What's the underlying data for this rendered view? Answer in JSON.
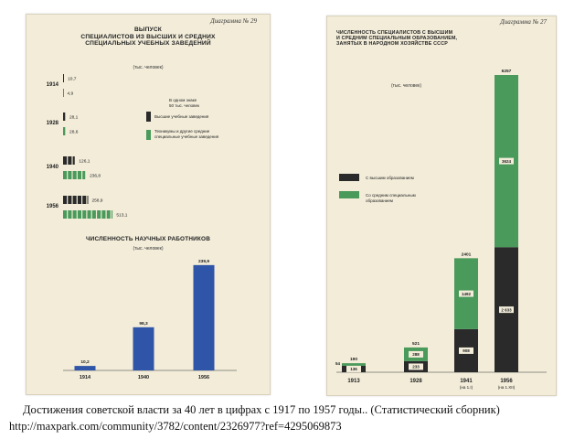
{
  "caption": {
    "line1": "Достижения советской власти за 40 лет в цифрах с 1917 по 1957 годы.. (Статистический сборник)",
    "line2": "http://maxpark.com/community/3782/content/2326977?ref=4295069873"
  },
  "colors": {
    "dark": "#2a2a2a",
    "green": "#4a9a5b",
    "blue": "#2f55a8",
    "paper": "#f2ecd9"
  },
  "left_page": {
    "diagram_number": "Диаграмма № 29",
    "title": "ВЫПУСК\nСПЕЦИАЛИСТОВ ИЗ ВЫСШИХ И СРЕДНИХ\nСПЕЦИАЛЬНЫХ УЧЕБНЫХ ЗАВЕДЕНИЙ",
    "unit": "(тыс. человек)",
    "scale_note": "В одном знаке\n50 тыс. человек",
    "legend_dark": "Высшие учебные заведения",
    "legend_green": "Техникумы и другие средние\nспециальные учебные заведения",
    "section2_title": "ЧИСЛЕННОСТЬ НАУЧНЫХ РАБОТНИКОВ",
    "section2_unit": "(тыс. человек)"
  },
  "right_page": {
    "diagram_number": "Диаграмма № 27",
    "title": "ЧИСЛЕННОСТЬ СПЕЦИАЛИСТОВ С ВЫСШИМ\nИ СРЕДНИМ СПЕЦИАЛЬНЫМ ОБРАЗОВАНИЕМ,\nЗАНЯТЫХ В НАРОДНОМ ХОЗЯЙСТВЕ СССР",
    "unit": "(тыс. человек)",
    "legend_dark": "С высшим образованием",
    "legend_green": "Со средним специальным\nобразованием"
  },
  "chart_data": [
    {
      "type": "bar",
      "orientation": "horizontal",
      "title": "ВЫПУСК СПЕЦИАЛИСТОВ ИЗ ВЫСШИХ И СРЕДНИХ СПЕЦИАЛЬНЫХ УЧЕБНЫХ ЗАВЕДЕНИЙ",
      "categories": [
        "1914",
        "1928",
        "1940",
        "1956"
      ],
      "series": [
        {
          "name": "Высшие учебные заведения",
          "values": [
            10.7,
            28.1,
            126.1,
            258.9
          ],
          "labels": [
            "10,7",
            "28,1",
            "126,1",
            "258,9"
          ]
        },
        {
          "name": "Техникумы и другие средние специальные учебные заведения",
          "values": [
            4.9,
            28.6,
            236.8,
            513.1
          ],
          "labels": [
            "4,9",
            "28,6",
            "236,8",
            "513,1"
          ]
        }
      ]
    },
    {
      "type": "bar",
      "title": "ЧИСЛЕННОСТЬ НАУЧНЫХ РАБОТНИКОВ",
      "categories": [
        "1914",
        "1940",
        "1956"
      ],
      "values": [
        10.2,
        98.3,
        239.9
      ],
      "labels": [
        "10,2",
        "98,3",
        "239,9"
      ]
    },
    {
      "type": "bar",
      "stacked": true,
      "title": "ЧИСЛЕННОСТЬ СПЕЦИАЛИСТОВ С ВЫСШИМ И СРЕДНИМ СПЕЦИАЛЬНЫМ ОБРАЗОВАНИЕМ, ЗАНЯТЫХ В НАРОДНОМ ХОЗЯЙСТВЕ СССР",
      "categories": [
        "1913",
        "1928",
        "1941",
        "1956"
      ],
      "category_notes": [
        "",
        "",
        "(на 1.I)",
        "(на 1.XII)"
      ],
      "totals": [
        190,
        521,
        2401,
        6257
      ],
      "total_labels": [
        "190",
        "521",
        "2401",
        "6257"
      ],
      "series": [
        {
          "name": "С высшим образованием",
          "values": [
            136,
            233,
            908,
            2633
          ],
          "labels": [
            "136",
            "233",
            "908",
            "2 633"
          ]
        },
        {
          "name": "Со средним специальным образованием",
          "values": [
            54,
            288,
            1492,
            3624
          ],
          "labels": [
            "54",
            "288",
            "1492",
            "3624"
          ]
        }
      ]
    }
  ]
}
